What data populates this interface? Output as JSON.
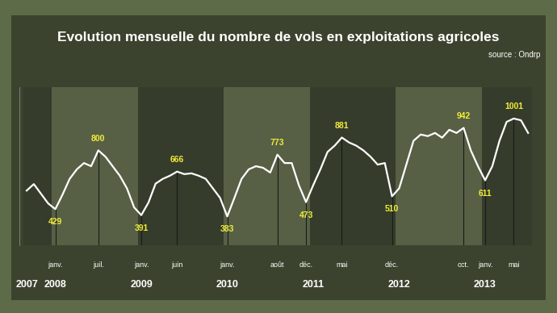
{
  "chart_data": {
    "type": "line",
    "title": "Evolution mensuelle du nombre de vols en exploitations agricoles",
    "source": "source : Ondrp",
    "categories": [
      null,
      null,
      null,
      null,
      "janv.",
      null,
      null,
      null,
      null,
      null,
      "juil.",
      null,
      null,
      null,
      null,
      null,
      "janv.",
      null,
      null,
      null,
      null,
      "juin",
      null,
      null,
      null,
      null,
      null,
      null,
      "janv.",
      null,
      null,
      null,
      null,
      null,
      null,
      "août",
      null,
      null,
      null,
      "déc.",
      null,
      null,
      null,
      null,
      "mai",
      null,
      null,
      null,
      null,
      null,
      null,
      "déc.",
      null,
      null,
      null,
      null,
      null,
      null,
      null,
      null,
      null,
      "oct.",
      null,
      null,
      "janv.",
      null,
      null,
      null,
      "mai",
      null,
      null
    ],
    "years": [
      "2007",
      null,
      null,
      null,
      "2008",
      null,
      null,
      null,
      null,
      null,
      null,
      null,
      null,
      null,
      null,
      null,
      "2009",
      null,
      null,
      null,
      null,
      null,
      null,
      null,
      null,
      null,
      null,
      null,
      "2010",
      null,
      null,
      null,
      null,
      null,
      null,
      null,
      null,
      null,
      null,
      null,
      "2011",
      null,
      null,
      null,
      null,
      null,
      null,
      null,
      null,
      null,
      null,
      null,
      "2012",
      null,
      null,
      null,
      null,
      null,
      null,
      null,
      null,
      null,
      null,
      null,
      "2013",
      null,
      null,
      null,
      null,
      null,
      null
    ],
    "values": [
      546,
      587,
      526,
      465,
      429,
      520,
      620,
      680,
      720,
      700,
      800,
      760,
      700,
      640,
      560,
      440,
      391,
      470,
      590,
      620,
      640,
      666,
      650,
      655,
      640,
      620,
      560,
      500,
      383,
      500,
      620,
      680,
      700,
      690,
      660,
      773,
      720,
      720,
      580,
      473,
      580,
      680,
      790,
      830,
      881,
      850,
      830,
      800,
      760,
      710,
      720,
      510,
      560,
      710,
      860,
      900,
      890,
      910,
      880,
      930,
      910,
      942,
      800,
      700,
      611,
      700,
      860,
      980,
      1001,
      990,
      910
    ],
    "value_labels": [
      null,
      null,
      null,
      null,
      "429",
      null,
      null,
      null,
      null,
      null,
      "800",
      null,
      null,
      null,
      null,
      null,
      "391",
      null,
      null,
      null,
      null,
      "666",
      null,
      null,
      null,
      null,
      null,
      null,
      "383",
      null,
      null,
      null,
      null,
      null,
      null,
      "773",
      null,
      null,
      null,
      "473",
      null,
      null,
      null,
      null,
      "881",
      null,
      null,
      null,
      null,
      null,
      null,
      "510",
      null,
      null,
      null,
      null,
      null,
      null,
      null,
      null,
      null,
      "942",
      null,
      null,
      "611",
      null,
      null,
      null,
      "1001",
      null,
      null
    ],
    "color": "#ffffff",
    "ylim": [
      200,
      1200
    ],
    "yticks": [],
    "tick_labels": "x",
    "grid": false
  }
}
